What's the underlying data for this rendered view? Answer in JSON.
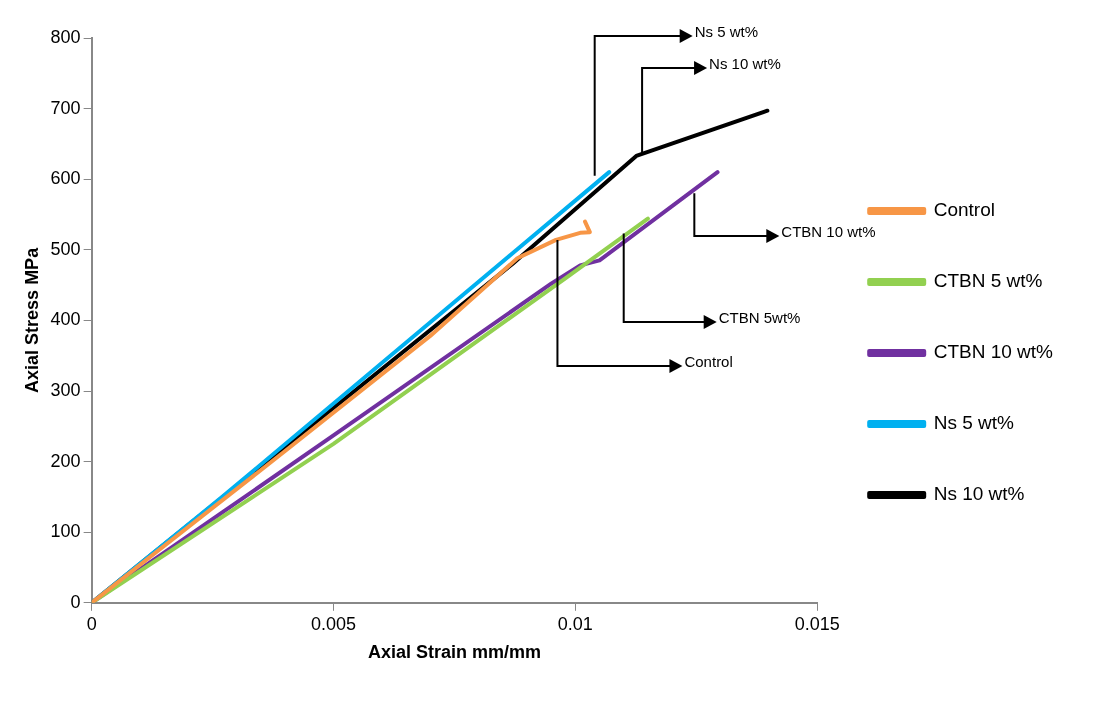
{
  "chart_data": {
    "type": "line",
    "xlabel": "Axial Strain mm/mm",
    "ylabel": "Axial Stress MPa",
    "xlim": [
      0,
      0.015
    ],
    "xticks": [
      0,
      0.005,
      0.01,
      0.015
    ],
    "ylim": [
      0,
      800
    ],
    "yticks": [
      0,
      100,
      200,
      300,
      400,
      500,
      600,
      700,
      800
    ],
    "grid": false,
    "legend": "right",
    "marker": "none",
    "line_style": "solid",
    "series": [
      {
        "name": "Control",
        "color": "#f79646",
        "x": [
          0,
          0.004,
          0.007,
          0.0088,
          0.0096,
          0.0101,
          0.0103,
          0.0102
        ],
        "values": [
          0,
          215,
          378,
          488,
          514,
          524,
          525,
          540
        ]
      },
      {
        "name": "CTBN 5 wt%",
        "color": "#92d050",
        "x": [
          0,
          0.005,
          0.0098,
          0.0115
        ],
        "values": [
          0,
          225,
          460,
          544
        ]
      },
      {
        "name": "CTBN 10 wt%",
        "color": "#7030a0",
        "x": [
          0,
          0.005,
          0.0095,
          0.0101,
          0.0105,
          0.01294
        ],
        "values": [
          0,
          237,
          452,
          478,
          485,
          610
        ]
      },
      {
        "name": "Ns 5 wt%",
        "color": "#00b0f0",
        "x": [
          0,
          0.0027,
          0.0107
        ],
        "values": [
          0,
          150,
          610
        ]
      },
      {
        "name": "Ns 10 wt%",
        "color": "#000000",
        "x": [
          0,
          0.0087,
          0.01126,
          0.01397
        ],
        "values": [
          0,
          480,
          633,
          697
        ]
      }
    ],
    "annotations": [
      {
        "text": "Ns 5 wt%",
        "x": 0.0104,
        "y": 605
      },
      {
        "text": "Ns 10 wt%",
        "x": 0.01138,
        "y": 636
      },
      {
        "text": "CTBN 10 wt%",
        "x": 0.01246,
        "y": 580
      },
      {
        "text": "CTBN 5wt%",
        "x": 0.011,
        "y": 523
      },
      {
        "text": "Control",
        "x": 0.00963,
        "y": 514
      }
    ]
  }
}
